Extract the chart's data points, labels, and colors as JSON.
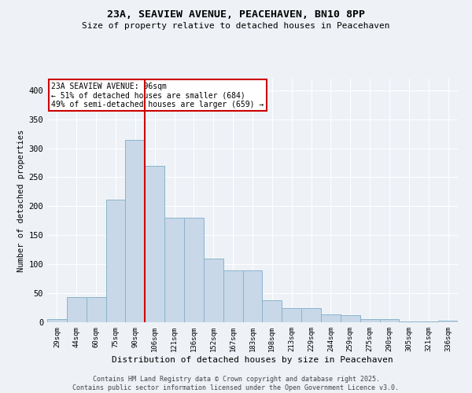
{
  "title_line1": "23A, SEAVIEW AVENUE, PEACEHAVEN, BN10 8PP",
  "title_line2": "Size of property relative to detached houses in Peacehaven",
  "xlabel": "Distribution of detached houses by size in Peacehaven",
  "ylabel": "Number of detached properties",
  "categories": [
    "29sqm",
    "44sqm",
    "60sqm",
    "75sqm",
    "90sqm",
    "106sqm",
    "121sqm",
    "136sqm",
    "152sqm",
    "167sqm",
    "183sqm",
    "198sqm",
    "213sqm",
    "229sqm",
    "244sqm",
    "259sqm",
    "275sqm",
    "290sqm",
    "305sqm",
    "321sqm",
    "336sqm"
  ],
  "values": [
    5,
    43,
    43,
    212,
    315,
    270,
    180,
    180,
    110,
    90,
    90,
    38,
    25,
    25,
    14,
    12,
    5,
    5,
    2,
    2,
    3
  ],
  "bar_color": "#c8d8e8",
  "bar_edge_color": "#8ab4cc",
  "vline_x": 4.5,
  "vline_color": "#cc0000",
  "annotation_title": "23A SEAVIEW AVENUE: 96sqm",
  "annotation_line2": "← 51% of detached houses are smaller (684)",
  "annotation_line3": "49% of semi-detached houses are larger (659) →",
  "annotation_box_color": "#ffffff",
  "annotation_box_edge": "#cc0000",
  "ylim": [
    0,
    420
  ],
  "yticks": [
    0,
    50,
    100,
    150,
    200,
    250,
    300,
    350,
    400
  ],
  "background_color": "#eef2f7",
  "grid_color": "#ffffff",
  "footnote_line1": "Contains HM Land Registry data © Crown copyright and database right 2025.",
  "footnote_line2": "Contains public sector information licensed under the Open Government Licence v3.0."
}
